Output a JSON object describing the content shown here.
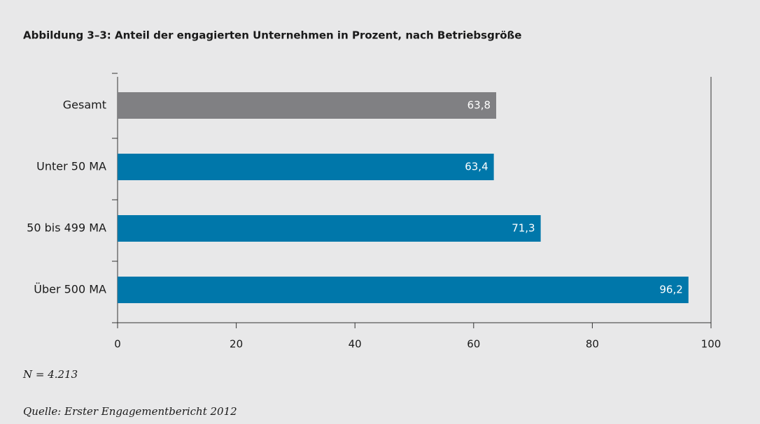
{
  "chart_data": {
    "type": "bar",
    "orientation": "horizontal",
    "title": "Abbildung 3–3: Anteil der engagierten Unternehmen in Prozent, nach Betriebsgröße",
    "categories": [
      "Gesamt",
      "Unter 50 MA",
      "50 bis 499 MA",
      "Über 500 MA"
    ],
    "values": [
      63.8,
      63.4,
      71.3,
      96.2
    ],
    "value_labels": [
      "63,8",
      "63,4",
      "71,3",
      "96,2"
    ],
    "colors": [
      "#808083",
      "#0077aa",
      "#0077aa",
      "#0077aa"
    ],
    "xlim": [
      0,
      100
    ],
    "xticks": [
      0,
      20,
      40,
      60,
      80,
      100
    ],
    "notes": [
      "N = 4.213",
      "Quelle: Erster Engagementbericht 2012"
    ]
  }
}
